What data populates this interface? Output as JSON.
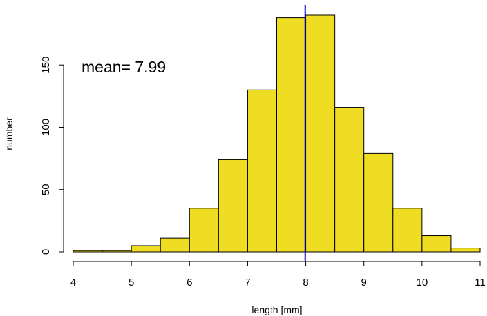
{
  "chart_data": {
    "type": "bar",
    "variant": "histogram",
    "bins": [
      {
        "from": 4.0,
        "to": 4.5,
        "count": 1
      },
      {
        "from": 4.5,
        "to": 5.0,
        "count": 1
      },
      {
        "from": 5.0,
        "to": 5.5,
        "count": 5
      },
      {
        "from": 5.5,
        "to": 6.0,
        "count": 11
      },
      {
        "from": 6.0,
        "to": 6.5,
        "count": 35
      },
      {
        "from": 6.5,
        "to": 7.0,
        "count": 74
      },
      {
        "from": 7.0,
        "to": 7.5,
        "count": 130
      },
      {
        "from": 7.5,
        "to": 8.0,
        "count": 188
      },
      {
        "from": 8.0,
        "to": 8.5,
        "count": 190
      },
      {
        "from": 8.5,
        "to": 9.0,
        "count": 116
      },
      {
        "from": 9.0,
        "to": 9.5,
        "count": 79
      },
      {
        "from": 9.5,
        "to": 10.0,
        "count": 35
      },
      {
        "from": 10.0,
        "to": 10.5,
        "count": 13
      },
      {
        "from": 10.5,
        "to": 11.0,
        "count": 3
      }
    ],
    "xlabel": "length [mm]",
    "ylabel": "number",
    "xlim": [
      4,
      11
    ],
    "ylim": [
      0,
      190
    ],
    "xticks": [
      "4",
      "5",
      "6",
      "7",
      "8",
      "9",
      "10",
      "11"
    ],
    "yticks": [
      "0",
      "50",
      "100",
      "150"
    ],
    "mean_line": {
      "value": 7.99,
      "color": "#0000cc"
    },
    "annotation": {
      "text": "mean= 7.99",
      "color": "#0000ee"
    },
    "bar_color": "#eedd22",
    "grid": false
  }
}
